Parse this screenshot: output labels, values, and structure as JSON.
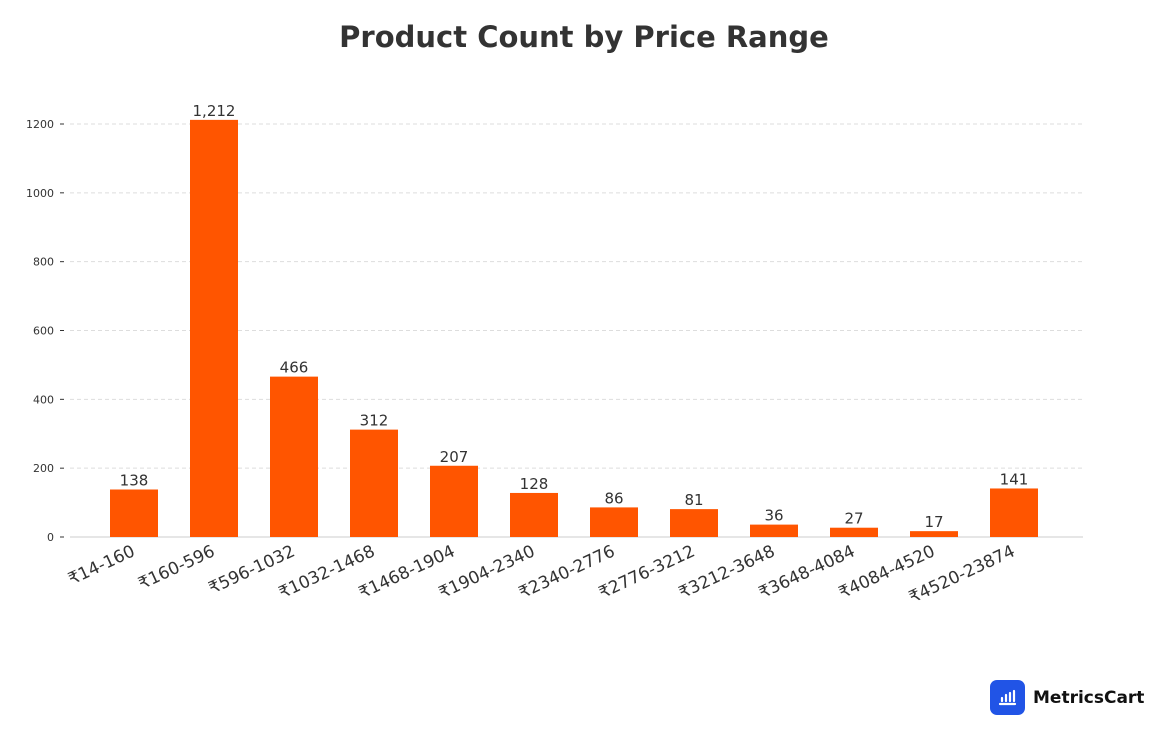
{
  "chart_data": {
    "type": "bar",
    "title": "Product Count by Price Range",
    "xlabel": "",
    "ylabel": "",
    "categories": [
      "₹14-160",
      "₹160-596",
      "₹596-1032",
      "₹1032-1468",
      "₹1468-1904",
      "₹1904-2340",
      "₹2340-2776",
      "₹2776-3212",
      "₹3212-3648",
      "₹3648-4084",
      "₹4084-4520",
      "₹4520-23874"
    ],
    "values": [
      138,
      1212,
      466,
      312,
      207,
      128,
      86,
      81,
      36,
      27,
      17,
      141
    ],
    "data_labels": [
      "138",
      "1,212",
      "466",
      "312",
      "207",
      "128",
      "86",
      "81",
      "36",
      "27",
      "17",
      "141"
    ],
    "ylim": [
      0,
      1200
    ],
    "yticks": [
      0,
      200,
      400,
      600,
      800,
      1000,
      1200
    ],
    "grid": true,
    "bar_color": "#ff5500"
  },
  "branding": {
    "name": "MetricsCart"
  }
}
